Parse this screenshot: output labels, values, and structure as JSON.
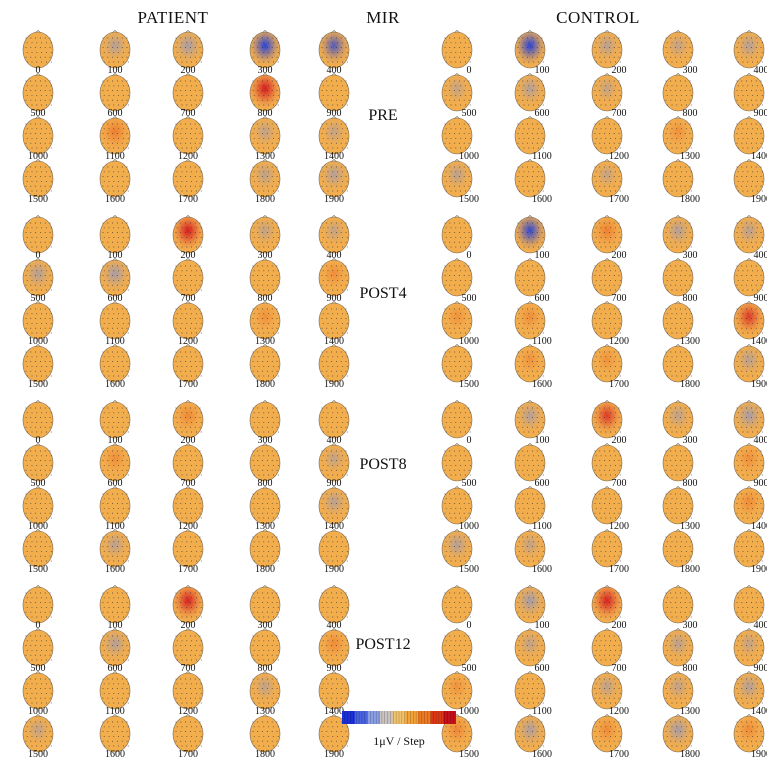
{
  "headers": {
    "patient": "PATIENT",
    "mir": "MIR",
    "control": "CONTROL"
  },
  "conditions": [
    "PRE",
    "POST4",
    "POST8",
    "POST12"
  ],
  "time_labels": [
    "0",
    "100",
    "200",
    "300",
    "400",
    "500",
    "600",
    "700",
    "800",
    "900",
    "1000",
    "1100",
    "1200",
    "1300",
    "1400",
    "1500",
    "1600",
    "1700",
    "1800",
    "1900"
  ],
  "colorbar": {
    "label": "1μV / Step",
    "colors": [
      "#1a2fd6",
      "#4a63e0",
      "#8a9ee4",
      "#c9c3c2",
      "#f2c36a",
      "#f2a43a",
      "#ec7a24",
      "#dc3a16",
      "#c8101a"
    ]
  },
  "palette": {
    "neutral": "#f2ad4d",
    "blue_strong": "#1f3ee0",
    "blue_mild": "#7f93d8",
    "red_strong": "#d4141c",
    "red_mild": "#ec6a24"
  },
  "maps": {
    "patient": {
      "PRE": [
        [
          0,
          0
        ],
        [
          -1,
          0
        ],
        [
          -1.5,
          0
        ],
        [
          -3,
          0
        ],
        [
          -2,
          0
        ],
        [
          0,
          0
        ],
        [
          0,
          0
        ],
        [
          0,
          0
        ],
        [
          3,
          0
        ],
        [
          0,
          0
        ],
        [
          0,
          0
        ],
        [
          1.8,
          0
        ],
        [
          0,
          0
        ],
        [
          -0.5,
          0
        ],
        [
          -0.4,
          0
        ],
        [
          0,
          0
        ],
        [
          0,
          0
        ],
        [
          0,
          0
        ],
        [
          -0.6,
          0
        ],
        [
          -1,
          0
        ]
      ],
      "POST4": [
        [
          0,
          0
        ],
        [
          0,
          0
        ],
        [
          3,
          0
        ],
        [
          -0.4,
          0
        ],
        [
          -0.3,
          0
        ],
        [
          -1,
          0
        ],
        [
          -1.5,
          0
        ],
        [
          0,
          0
        ],
        [
          0,
          0
        ],
        [
          0.6,
          0
        ],
        [
          0,
          0
        ],
        [
          0,
          0
        ],
        [
          0,
          0
        ],
        [
          0.4,
          0
        ],
        [
          0,
          0
        ],
        [
          0,
          0
        ],
        [
          0,
          0
        ],
        [
          0,
          0
        ],
        [
          0,
          0
        ],
        [
          0,
          0
        ]
      ],
      "POST8": [
        [
          0,
          0
        ],
        [
          0,
          0
        ],
        [
          1,
          0
        ],
        [
          0,
          0
        ],
        [
          0,
          0
        ],
        [
          0,
          0
        ],
        [
          0.6,
          0
        ],
        [
          0,
          0
        ],
        [
          0,
          0
        ],
        [
          -0.4,
          0
        ],
        [
          0,
          0
        ],
        [
          0,
          0
        ],
        [
          0,
          0
        ],
        [
          0,
          0
        ],
        [
          -0.8,
          0
        ],
        [
          0,
          0
        ],
        [
          -0.7,
          0
        ],
        [
          0,
          0
        ],
        [
          0,
          0
        ],
        [
          0,
          0
        ]
      ],
      "POST12": [
        [
          0,
          0
        ],
        [
          0,
          0
        ],
        [
          2.8,
          0
        ],
        [
          0,
          0
        ],
        [
          0,
          0
        ],
        [
          0,
          0
        ],
        [
          -1,
          0
        ],
        [
          0,
          0
        ],
        [
          0,
          0
        ],
        [
          0.8,
          0
        ],
        [
          0,
          0
        ],
        [
          0,
          0
        ],
        [
          0,
          0
        ],
        [
          -0.5,
          0
        ],
        [
          0,
          0
        ],
        [
          -0.4,
          0
        ],
        [
          0,
          0
        ],
        [
          0,
          0
        ],
        [
          0,
          0
        ],
        [
          0,
          0
        ]
      ]
    },
    "control": {
      "PRE": [
        [
          0,
          0
        ],
        [
          -3,
          0
        ],
        [
          -0.8,
          0
        ],
        [
          -0.4,
          0
        ],
        [
          -0.9,
          0
        ],
        [
          -0.3,
          0
        ],
        [
          -1,
          0
        ],
        [
          -0.3,
          0
        ],
        [
          0,
          0
        ],
        [
          0,
          0
        ],
        [
          0,
          0
        ],
        [
          0,
          0
        ],
        [
          0,
          0
        ],
        [
          0.4,
          0
        ],
        [
          0,
          0
        ],
        [
          -0.7,
          0
        ],
        [
          0,
          0
        ],
        [
          -0.3,
          0
        ],
        [
          0,
          0
        ],
        [
          0,
          0
        ]
      ],
      "POST4": [
        [
          0,
          0
        ],
        [
          -2.8,
          0
        ],
        [
          1.6,
          0
        ],
        [
          -1,
          0
        ],
        [
          -0.7,
          0
        ],
        [
          0,
          0
        ],
        [
          0,
          0
        ],
        [
          0,
          0
        ],
        [
          0,
          0
        ],
        [
          0,
          0
        ],
        [
          0.3,
          0
        ],
        [
          0.6,
          0
        ],
        [
          0,
          0
        ],
        [
          0,
          0
        ],
        [
          2,
          0
        ],
        [
          0,
          0
        ],
        [
          0.4,
          0
        ],
        [
          0.3,
          0
        ],
        [
          0,
          0
        ],
        [
          -0.8,
          0
        ]
      ],
      "POST8": [
        [
          0,
          0
        ],
        [
          -1,
          0
        ],
        [
          2,
          0
        ],
        [
          -0.6,
          0
        ],
        [
          -1.5,
          0
        ],
        [
          0,
          0
        ],
        [
          0,
          0
        ],
        [
          0,
          0
        ],
        [
          0,
          0
        ],
        [
          0.6,
          0
        ],
        [
          0,
          0
        ],
        [
          0,
          0
        ],
        [
          0,
          0
        ],
        [
          0,
          0
        ],
        [
          0.8,
          0
        ],
        [
          -1,
          0
        ],
        [
          -0.4,
          0
        ],
        [
          0,
          0
        ],
        [
          0,
          0
        ],
        [
          0,
          0
        ]
      ],
      "POST12": [
        [
          0,
          0
        ],
        [
          -1.6,
          0
        ],
        [
          2.8,
          0
        ],
        [
          0,
          0
        ],
        [
          0,
          0
        ],
        [
          0,
          0
        ],
        [
          -0.5,
          0
        ],
        [
          0,
          0
        ],
        [
          -0.7,
          0
        ],
        [
          -0.4,
          0
        ],
        [
          0.3,
          0
        ],
        [
          0,
          0
        ],
        [
          -0.6,
          0
        ],
        [
          -0.5,
          0
        ],
        [
          -1,
          0
        ],
        [
          1.2,
          0
        ],
        [
          -1.2,
          0
        ],
        [
          0.8,
          0
        ],
        [
          -1.6,
          0
        ],
        [
          0.8,
          0
        ]
      ]
    }
  }
}
